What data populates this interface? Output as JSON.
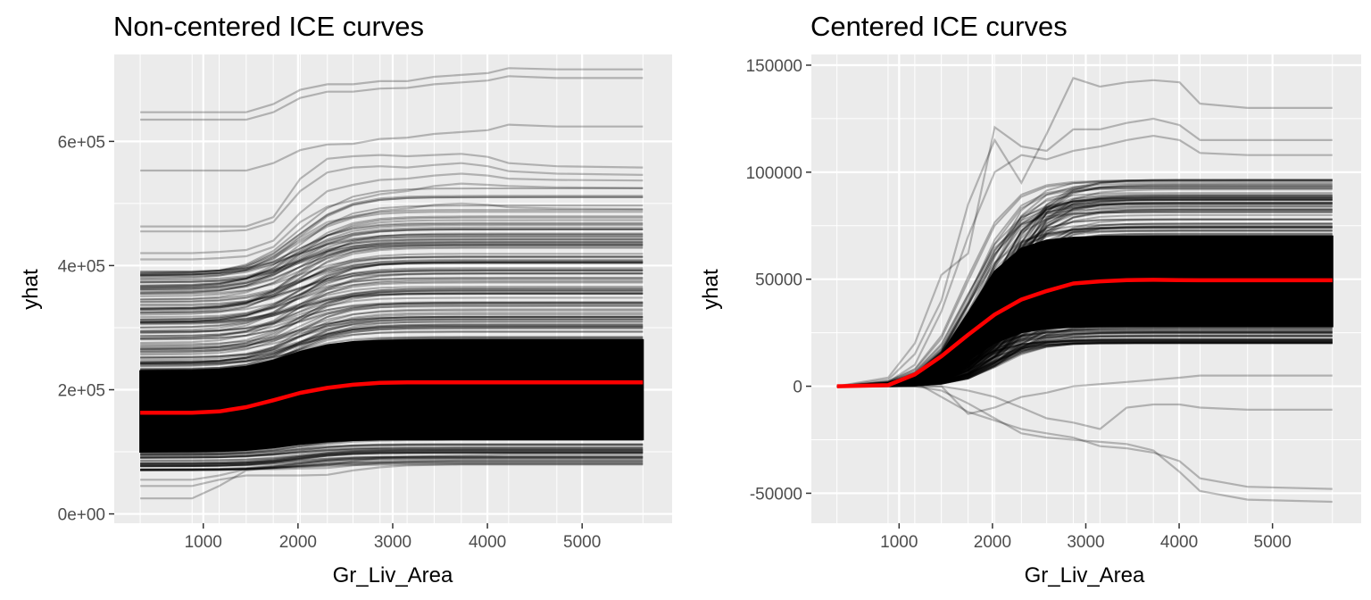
{
  "chart_data": [
    {
      "type": "line",
      "title": "Non-centered ICE curves",
      "xlabel": "Gr_Liv_Area",
      "ylabel": "yhat",
      "xlim": [
        60,
        5950
      ],
      "ylim": [
        -15000,
        740000
      ],
      "x_ticks": [
        {
          "value": 1000,
          "label": "1000"
        },
        {
          "value": 2000,
          "label": "2000"
        },
        {
          "value": 3000,
          "label": "3000"
        },
        {
          "value": 4000,
          "label": "4000"
        },
        {
          "value": 5000,
          "label": "5000"
        }
      ],
      "y_ticks": [
        {
          "value": 0,
          "label": "0e+00"
        },
        {
          "value": 200000,
          "label": "2e+05"
        },
        {
          "value": 400000,
          "label": "4e+05"
        },
        {
          "value": 600000,
          "label": "6e+05"
        }
      ],
      "grid": true,
      "grid_x": [
        334,
        882,
        1168,
        1453,
        1739,
        2024,
        2310,
        2581,
        2866,
        3152,
        3438,
        3724,
        4004,
        4224,
        4733,
        5642
      ],
      "ice_lines_color": "#000000",
      "average_line_color": "#ff0000",
      "series": [
        {
          "x": [
            334,
            882,
            1168,
            1453,
            1739,
            2024,
            2310,
            2581,
            2866,
            3152,
            3438,
            3724,
            4004,
            4224,
            4733,
            5642
          ],
          "values": [
            647000,
            647000,
            647000,
            647000,
            660000,
            683000,
            692000,
            692000,
            697000,
            697000,
            704000,
            707000,
            710000,
            718000,
            716000,
            716000
          ]
        },
        {
          "x": [
            334,
            882,
            1168,
            1453,
            1739,
            2024,
            2310,
            2581,
            2866,
            3152,
            3438,
            3724,
            4004,
            4224,
            4733,
            5642
          ],
          "values": [
            635000,
            635000,
            635000,
            635000,
            647000,
            670000,
            680000,
            680000,
            685000,
            686000,
            692000,
            695000,
            698000,
            705000,
            702000,
            702000
          ]
        },
        {
          "x": [
            334,
            882,
            1168,
            1453,
            1739,
            2024,
            2310,
            2581,
            2866,
            3152,
            3438,
            3724,
            4004,
            4224,
            4733,
            5642
          ],
          "values": [
            553000,
            553000,
            553000,
            553000,
            565000,
            586000,
            595000,
            596000,
            604000,
            606000,
            612000,
            615000,
            618000,
            627000,
            624000,
            624000
          ]
        },
        {
          "x": [
            334,
            882,
            1168,
            1453,
            1739,
            2024,
            2310,
            2581,
            2866,
            3152,
            3438,
            3724,
            4004,
            4224,
            4733,
            5642
          ],
          "values": [
            463000,
            463000,
            463000,
            463000,
            478000,
            540000,
            572000,
            576000,
            578000,
            576000,
            578000,
            580000,
            575000,
            565000,
            560000,
            558000
          ]
        },
        {
          "x": [
            334,
            882,
            1168,
            1453,
            1739,
            2024,
            2310,
            2581,
            2866,
            3152,
            3438,
            3724,
            4004,
            4224,
            4733,
            5642
          ],
          "values": [
            455000,
            455000,
            455000,
            457000,
            470000,
            520000,
            550000,
            558000,
            560000,
            558000,
            562000,
            565000,
            560000,
            552000,
            548000,
            546000
          ]
        },
        {
          "x": [
            334,
            882,
            1168,
            1453,
            1739,
            2024,
            2310,
            2581,
            2866,
            3152,
            3438,
            3724,
            4004,
            4224,
            4733,
            5642
          ],
          "values": [
            420000,
            420000,
            422000,
            425000,
            440000,
            485000,
            520000,
            530000,
            538000,
            540000,
            545000,
            548000,
            545000,
            540000,
            538000,
            537000
          ]
        },
        {
          "x": [
            334,
            882,
            1168,
            1453,
            1739,
            2024,
            2310,
            2581,
            2866,
            3152,
            3438,
            3724,
            4004,
            4224,
            4733,
            5642
          ],
          "values": [
            410000,
            410000,
            412000,
            415000,
            430000,
            470000,
            495000,
            505000,
            515000,
            520000,
            528000,
            532000,
            530000,
            528000,
            526000,
            525000
          ]
        },
        {
          "x": [
            334,
            882,
            1168,
            1453,
            1739,
            2024,
            2310,
            2581,
            2866,
            3152,
            3438,
            3724,
            4004,
            4224,
            4733,
            5642
          ],
          "values": [
            390000,
            390000,
            392000,
            395000,
            410000,
            445000,
            470000,
            478000,
            488000,
            492000,
            498000,
            500000,
            498000,
            494000,
            492000,
            491000
          ]
        },
        {
          "x": [
            334,
            882,
            1168,
            1453,
            1739,
            2024,
            2310,
            2581,
            2866,
            3152,
            3438,
            3724,
            4004,
            4224,
            4733,
            5642
          ],
          "values": [
            25000,
            25000,
            45000,
            70000,
            75000,
            76000,
            78000,
            85000,
            90000,
            92000,
            93000,
            94000,
            95000,
            96000,
            96000,
            96000
          ]
        },
        {
          "x": [
            334,
            882,
            1168,
            1453,
            1739,
            2024,
            2310,
            2581,
            2866,
            3152,
            3438,
            3724,
            4004,
            4224,
            4733,
            5642
          ],
          "values": [
            45000,
            45000,
            55000,
            62000,
            62000,
            62000,
            63000,
            70000,
            75000,
            78000,
            79000,
            80000,
            80000,
            80000,
            80000,
            80000
          ]
        },
        {
          "x": [
            334,
            882,
            1168,
            1453,
            1739,
            2024,
            2310,
            2581,
            2866,
            3152,
            3438,
            3724,
            4004,
            4224,
            4733,
            5642
          ],
          "values": [
            55000,
            55000,
            62000,
            72000,
            72000,
            73000,
            74000,
            78000,
            82000,
            84000,
            85000,
            86000,
            86000,
            86000,
            86000,
            86000
          ]
        },
        {
          "name": "average",
          "x": [
            334,
            882,
            1168,
            1453,
            1739,
            2024,
            2310,
            2581,
            2866,
            3152,
            3438,
            3724,
            4004,
            4224,
            4733,
            5642
          ],
          "values": [
            163000,
            163000,
            165000,
            172000,
            183000,
            195000,
            203000,
            208000,
            211000,
            212000,
            212000,
            212000,
            212000,
            212000,
            212000,
            212000
          ]
        }
      ]
    },
    {
      "type": "line",
      "title": "Centered ICE curves",
      "xlabel": "Gr_Liv_Area",
      "ylabel": "yhat",
      "xlim": [
        60,
        5950
      ],
      "ylim": [
        -64000,
        155000
      ],
      "x_ticks": [
        {
          "value": 1000,
          "label": "1000"
        },
        {
          "value": 2000,
          "label": "2000"
        },
        {
          "value": 3000,
          "label": "3000"
        },
        {
          "value": 4000,
          "label": "4000"
        },
        {
          "value": 5000,
          "label": "5000"
        }
      ],
      "y_ticks": [
        {
          "value": -50000,
          "label": "-50000"
        },
        {
          "value": 0,
          "label": "0"
        },
        {
          "value": 50000,
          "label": "50000"
        },
        {
          "value": 100000,
          "label": "100000"
        },
        {
          "value": 150000,
          "label": "150000"
        }
      ],
      "grid": true,
      "grid_x": [
        334,
        882,
        1168,
        1453,
        1739,
        2024,
        2310,
        2581,
        2866,
        3152,
        3438,
        3724,
        4004,
        4224,
        4733,
        5642
      ],
      "ice_lines_color": "#000000",
      "average_line_color": "#ff0000",
      "series": [
        {
          "x": [
            334,
            882,
            1168,
            1453,
            1739,
            2024,
            2310,
            2581,
            2866,
            3152,
            3438,
            3724,
            4004,
            4224,
            4733,
            5642
          ],
          "values": [
            0,
            3000,
            15000,
            40000,
            85000,
            115000,
            95000,
            118000,
            144000,
            140000,
            142000,
            143000,
            142000,
            132000,
            130000,
            130000
          ]
        },
        {
          "x": [
            334,
            882,
            1168,
            1453,
            1739,
            2024,
            2310,
            2581,
            2866,
            3152,
            3438,
            3724,
            4004,
            4224,
            4733,
            5642
          ],
          "values": [
            0,
            4000,
            20000,
            52000,
            62000,
            121000,
            112000,
            110000,
            120000,
            120000,
            123000,
            125000,
            122000,
            115000,
            115000,
            115000
          ]
        },
        {
          "x": [
            334,
            882,
            1168,
            1453,
            1739,
            2024,
            2310,
            2581,
            2866,
            3152,
            3438,
            3724,
            4004,
            4224,
            4733,
            5642
          ],
          "values": [
            0,
            2000,
            10000,
            35000,
            70000,
            100000,
            108000,
            106000,
            110000,
            112000,
            115000,
            117000,
            115000,
            109000,
            108000,
            108000
          ]
        },
        {
          "x": [
            334,
            882,
            1168,
            1453,
            1739,
            2024,
            2310,
            2581,
            2866,
            3152,
            3438,
            3724,
            4004,
            4224,
            4733,
            5642
          ],
          "values": [
            0,
            0,
            2000,
            -5000,
            -12000,
            -16000,
            -20000,
            -22000,
            -24000,
            -28000,
            -29000,
            -31000,
            -35000,
            -43000,
            -47000,
            -48000
          ]
        },
        {
          "x": [
            334,
            882,
            1168,
            1453,
            1739,
            2024,
            2310,
            2581,
            2866,
            3152,
            3438,
            3724,
            4004,
            4224,
            4733,
            5642
          ],
          "values": [
            0,
            0,
            0,
            -2000,
            -8000,
            -15000,
            -22000,
            -24000,
            -25000,
            -26000,
            -27000,
            -30000,
            -40000,
            -49000,
            -53000,
            -54000
          ]
        },
        {
          "x": [
            334,
            882,
            1168,
            1453,
            1739,
            2024,
            2310,
            2581,
            2866,
            3152,
            3438,
            3724,
            4004,
            4224,
            4733,
            5642
          ],
          "values": [
            0,
            0,
            0,
            0,
            -2000,
            -5000,
            -10000,
            -15000,
            -17000,
            -20000,
            -10000,
            -8500,
            -8500,
            -10000,
            -11000,
            -11000
          ]
        },
        {
          "x": [
            334,
            882,
            1168,
            1453,
            1739,
            2024,
            2310,
            2581,
            2866,
            3152,
            3438,
            3724,
            4004,
            4224,
            4733,
            5642
          ],
          "values": [
            0,
            0,
            0,
            0,
            -13000,
            -10000,
            -5000,
            -3000,
            0,
            1000,
            2000,
            3000,
            4000,
            5000,
            5000,
            5000
          ]
        },
        {
          "name": "average",
          "x": [
            334,
            882,
            1168,
            1453,
            1739,
            2024,
            2310,
            2581,
            2866,
            3152,
            3438,
            3724,
            4004,
            4224,
            4733,
            5642
          ],
          "values": [
            0,
            500,
            5500,
            14000,
            24000,
            33500,
            40500,
            44500,
            48000,
            49000,
            49600,
            49700,
            49600,
            49500,
            49500,
            49500
          ]
        }
      ]
    }
  ]
}
